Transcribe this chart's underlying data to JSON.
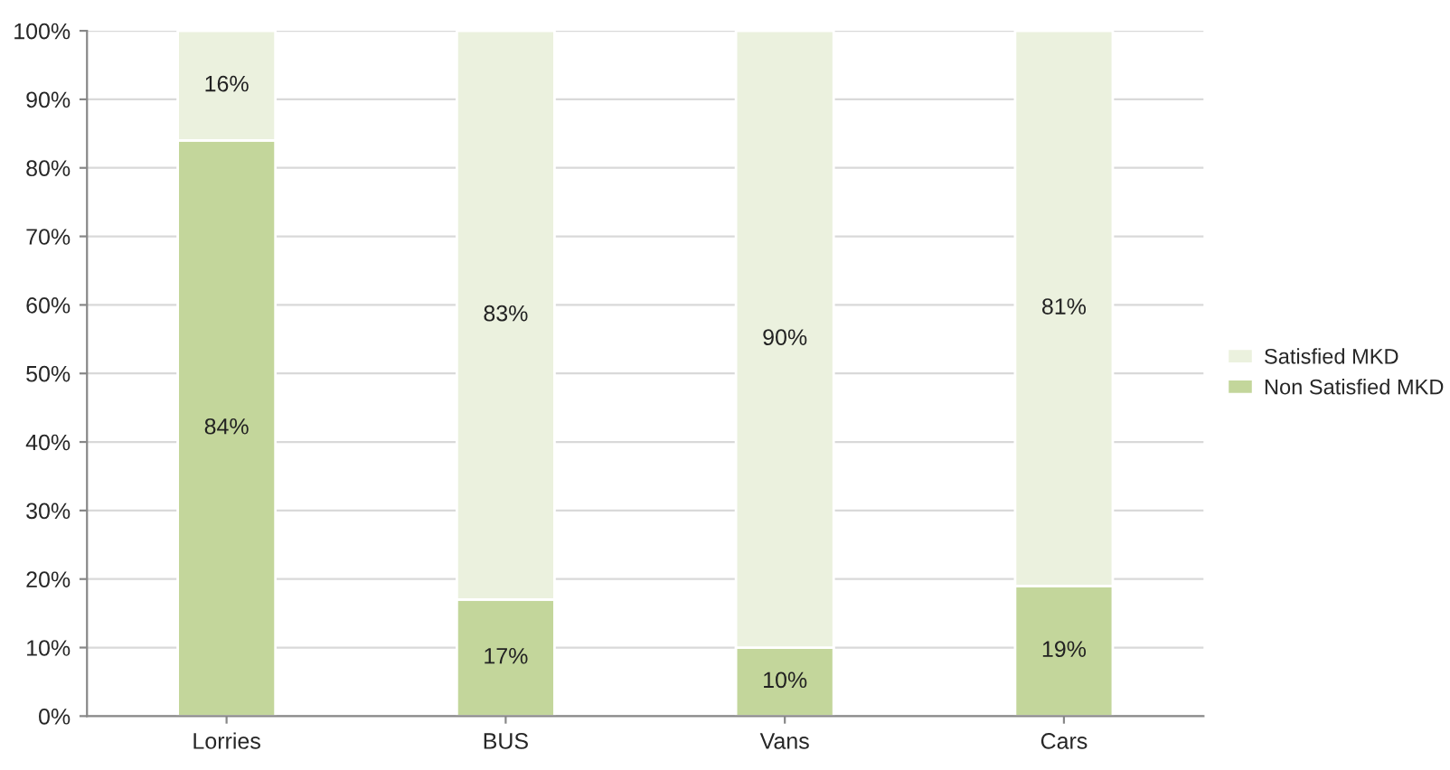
{
  "chart_data": {
    "type": "bar",
    "stacked": true,
    "categories": [
      "Lorries",
      "BUS",
      "Vans",
      "Cars"
    ],
    "series": [
      {
        "name": "Non Satisfied MKD",
        "color": "#c3d69b",
        "values": [
          84,
          17,
          10,
          19
        ]
      },
      {
        "name": "Satisfied MKD",
        "color": "#ebf1de",
        "values": [
          16,
          83,
          90,
          81
        ]
      }
    ],
    "ylim": [
      0,
      100
    ],
    "yticks": [
      {
        "value": 0,
        "label": "0%"
      },
      {
        "value": 10,
        "label": "10%"
      },
      {
        "value": 20,
        "label": "20%"
      },
      {
        "value": 30,
        "label": "30%"
      },
      {
        "value": 40,
        "label": "40%"
      },
      {
        "value": 50,
        "label": "50%"
      },
      {
        "value": 60,
        "label": "60%"
      },
      {
        "value": 70,
        "label": "70%"
      },
      {
        "value": 80,
        "label": "80%"
      },
      {
        "value": 90,
        "label": "90%"
      },
      {
        "value": 100,
        "label": "100%"
      }
    ],
    "value_labels": [
      [
        "84%",
        "17%",
        "10%",
        "19%"
      ],
      [
        "16%",
        "83%",
        "90%",
        "81%"
      ]
    ],
    "grid": "y",
    "legend": "right"
  }
}
